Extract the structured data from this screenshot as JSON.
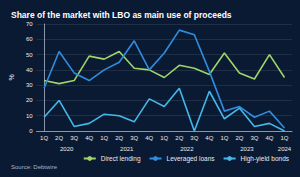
{
  "chart_data": {
    "type": "line",
    "title": "Share of the market with LBO as main use of proceeds",
    "y_label": "%",
    "source": "Source: Debtwire",
    "categories": [
      "1Q",
      "2Q",
      "3Q",
      "4Q",
      "1Q",
      "2Q",
      "3Q",
      "4Q",
      "1Q",
      "2Q",
      "3Q",
      "4Q",
      "1Q",
      "2Q",
      "3Q",
      "4Q",
      "1Q"
    ],
    "category_groups": [
      "2020",
      "2021",
      "2022",
      "2023",
      "2024"
    ],
    "series": [
      {
        "name": "Direct lending",
        "color": "#9fd46a",
        "values": [
          33,
          31,
          33,
          49,
          47,
          52,
          41,
          40,
          35,
          43,
          41,
          37,
          51,
          38,
          34,
          50,
          35
        ]
      },
      {
        "name": "Leveraged loans",
        "color": "#2f8de0",
        "values": [
          28,
          52,
          38,
          33,
          40,
          45,
          59,
          40,
          51,
          66,
          63,
          39,
          13,
          16,
          9,
          13,
          2
        ]
      },
      {
        "name": "High-yield bonds",
        "color": "#45b8ea",
        "values": [
          9,
          20,
          3,
          5,
          11,
          10,
          6,
          21,
          16,
          28,
          0,
          26,
          8,
          15,
          3,
          5,
          0
        ]
      }
    ],
    "ylim": [
      0,
      70
    ],
    "yticks": [
      0,
      10,
      20,
      30,
      40,
      50,
      60,
      70
    ],
    "grid": true,
    "legend": "bottom-right"
  }
}
